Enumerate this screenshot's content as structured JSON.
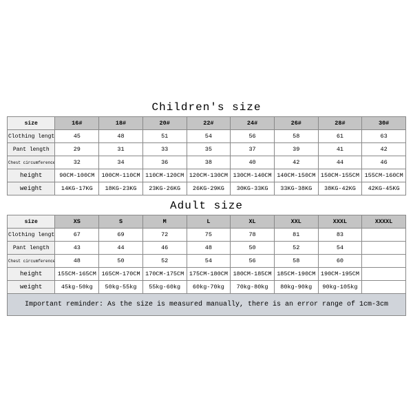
{
  "children": {
    "title": "Children's size",
    "headers": [
      "size",
      "16#",
      "18#",
      "20#",
      "22#",
      "24#",
      "26#",
      "28#",
      "30#"
    ],
    "rows": [
      {
        "label": "Clothing length",
        "labelClass": "rowlabel",
        "cells": [
          "45",
          "48",
          "51",
          "54",
          "56",
          "58",
          "61",
          "63"
        ]
      },
      {
        "label": "Pant length",
        "labelClass": "rowlabel",
        "cells": [
          "29",
          "31",
          "33",
          "35",
          "37",
          "39",
          "41",
          "42"
        ]
      },
      {
        "label": "Chest circumference 1/2",
        "labelClass": "rowlabel-tiny",
        "cells": [
          "32",
          "34",
          "36",
          "38",
          "40",
          "42",
          "44",
          "46"
        ]
      },
      {
        "label": "height",
        "labelClass": "rowlabel-bold",
        "cells": [
          "90CM-100CM",
          "100CM-110CM",
          "110CM-120CM",
          "120CM-130CM",
          "130CM-140CM",
          "140CM-150CM",
          "150CM-155CM",
          "155CM-160CM"
        ]
      },
      {
        "label": "weight",
        "labelClass": "rowlabel-bold",
        "cells": [
          "14KG-17KG",
          "18KG-23KG",
          "23KG-26KG",
          "26KG-29KG",
          "30KG-33KG",
          "33KG-38KG",
          "38KG-42KG",
          "42KG-45KG"
        ]
      }
    ]
  },
  "adult": {
    "title": "Adult size",
    "headers": [
      "size",
      "XS",
      "S",
      "M",
      "L",
      "XL",
      "XXL",
      "XXXL",
      "XXXXL"
    ],
    "rows": [
      {
        "label": "Clothing length",
        "labelClass": "rowlabel",
        "cells": [
          "67",
          "69",
          "72",
          "75",
          "78",
          "81",
          "83",
          ""
        ]
      },
      {
        "label": "Pant length",
        "labelClass": "rowlabel",
        "cells": [
          "43",
          "44",
          "46",
          "48",
          "50",
          "52",
          "54",
          ""
        ]
      },
      {
        "label": "Chest circumference 1/2",
        "labelClass": "rowlabel-tiny",
        "cells": [
          "48",
          "50",
          "52",
          "54",
          "56",
          "58",
          "60",
          ""
        ]
      },
      {
        "label": "height",
        "labelClass": "rowlabel-bold",
        "cells": [
          "155CM-165CM",
          "165CM-170CM",
          "170CM-175CM",
          "175CM-180CM",
          "180CM-185CM",
          "185CM-190CM",
          "190CM-195CM",
          ""
        ]
      },
      {
        "label": "weight",
        "labelClass": "rowlabel-bold",
        "cells": [
          "45kg-50kg",
          "50kg-55kg",
          "55kg-60kg",
          "60kg-70kg",
          "70kg-80kg",
          "80kg-90kg",
          "90kg-105kg",
          ""
        ]
      }
    ]
  },
  "footer": "Important reminder: As the size is measured manually, there is an error range of 1cm-3cm"
}
